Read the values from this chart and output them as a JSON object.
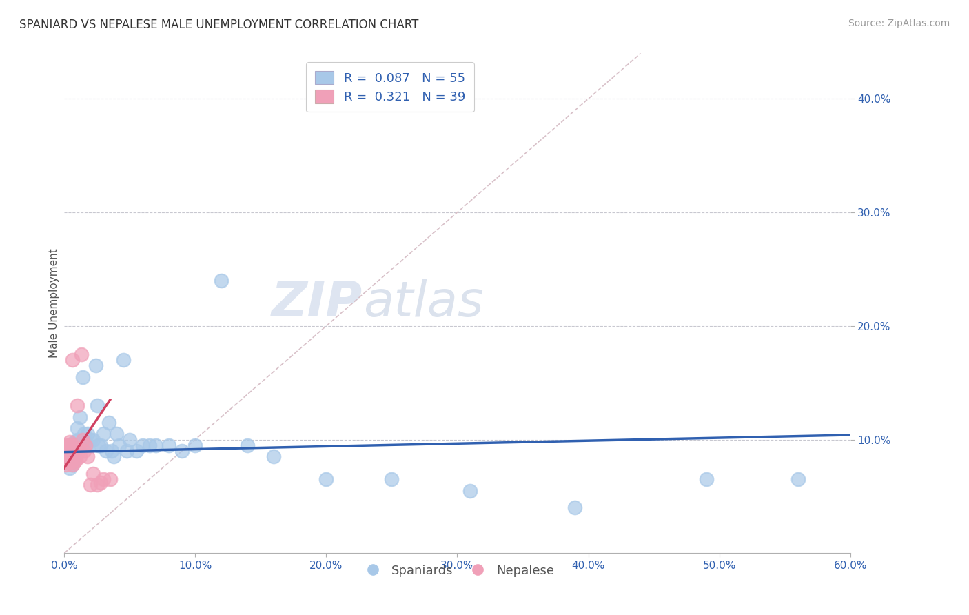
{
  "title": "SPANIARD VS NEPALESE MALE UNEMPLOYMENT CORRELATION CHART",
  "source": "Source: ZipAtlas.com",
  "ylabel": "Male Unemployment",
  "xlim": [
    0.0,
    0.6
  ],
  "ylim": [
    0.0,
    0.44
  ],
  "xticks": [
    0.0,
    0.1,
    0.2,
    0.3,
    0.4,
    0.5,
    0.6
  ],
  "yticks": [
    0.1,
    0.2,
    0.3,
    0.4
  ],
  "ytick_labels": [
    "10.0%",
    "20.0%",
    "30.0%",
    "40.0%"
  ],
  "xtick_labels": [
    "0.0%",
    "10.0%",
    "20.0%",
    "30.0%",
    "40.0%",
    "50.0%",
    "60.0%"
  ],
  "legend_r1": "R = 0.087",
  "legend_n1": "N = 55",
  "legend_r2": "R = 0.321",
  "legend_n2": "N = 39",
  "spaniard_color": "#a8c8e8",
  "nepalese_color": "#f0a0b8",
  "spaniard_line_color": "#3060b0",
  "nepalese_line_color": "#d04060",
  "diag_line_color": "#d8c0c8",
  "watermark_zip": "ZIP",
  "watermark_atlas": "atlas",
  "spaniard_x": [
    0.002,
    0.003,
    0.003,
    0.004,
    0.004,
    0.005,
    0.005,
    0.005,
    0.006,
    0.006,
    0.007,
    0.007,
    0.008,
    0.008,
    0.009,
    0.01,
    0.01,
    0.012,
    0.014,
    0.015,
    0.016,
    0.017,
    0.018,
    0.02,
    0.022,
    0.024,
    0.025,
    0.026,
    0.028,
    0.03,
    0.032,
    0.034,
    0.036,
    0.038,
    0.04,
    0.042,
    0.045,
    0.048,
    0.05,
    0.055,
    0.06,
    0.065,
    0.07,
    0.08,
    0.09,
    0.1,
    0.12,
    0.14,
    0.16,
    0.2,
    0.25,
    0.31,
    0.39,
    0.49,
    0.56
  ],
  "spaniard_y": [
    0.08,
    0.085,
    0.09,
    0.075,
    0.095,
    0.08,
    0.088,
    0.095,
    0.078,
    0.092,
    0.082,
    0.096,
    0.088,
    0.098,
    0.095,
    0.1,
    0.11,
    0.12,
    0.155,
    0.105,
    0.098,
    0.095,
    0.105,
    0.1,
    0.1,
    0.165,
    0.13,
    0.095,
    0.095,
    0.105,
    0.09,
    0.115,
    0.09,
    0.085,
    0.105,
    0.095,
    0.17,
    0.09,
    0.1,
    0.09,
    0.095,
    0.095,
    0.095,
    0.095,
    0.09,
    0.095,
    0.24,
    0.095,
    0.085,
    0.065,
    0.065,
    0.055,
    0.04,
    0.065,
    0.065
  ],
  "nepalese_x": [
    0.001,
    0.001,
    0.001,
    0.002,
    0.002,
    0.002,
    0.002,
    0.003,
    0.003,
    0.003,
    0.004,
    0.004,
    0.004,
    0.005,
    0.005,
    0.005,
    0.006,
    0.006,
    0.006,
    0.007,
    0.007,
    0.008,
    0.008,
    0.009,
    0.01,
    0.01,
    0.011,
    0.012,
    0.013,
    0.014,
    0.015,
    0.016,
    0.018,
    0.02,
    0.022,
    0.025,
    0.028,
    0.03,
    0.035
  ],
  "nepalese_y": [
    0.078,
    0.082,
    0.092,
    0.08,
    0.085,
    0.09,
    0.095,
    0.08,
    0.088,
    0.095,
    0.082,
    0.09,
    0.098,
    0.08,
    0.088,
    0.095,
    0.078,
    0.092,
    0.17,
    0.085,
    0.095,
    0.08,
    0.09,
    0.082,
    0.088,
    0.13,
    0.092,
    0.085,
    0.175,
    0.1,
    0.09,
    0.095,
    0.085,
    0.06,
    0.07,
    0.06,
    0.062,
    0.065,
    0.065
  ],
  "title_fontsize": 12,
  "label_fontsize": 11,
  "tick_fontsize": 11,
  "source_fontsize": 10,
  "background_color": "#ffffff"
}
